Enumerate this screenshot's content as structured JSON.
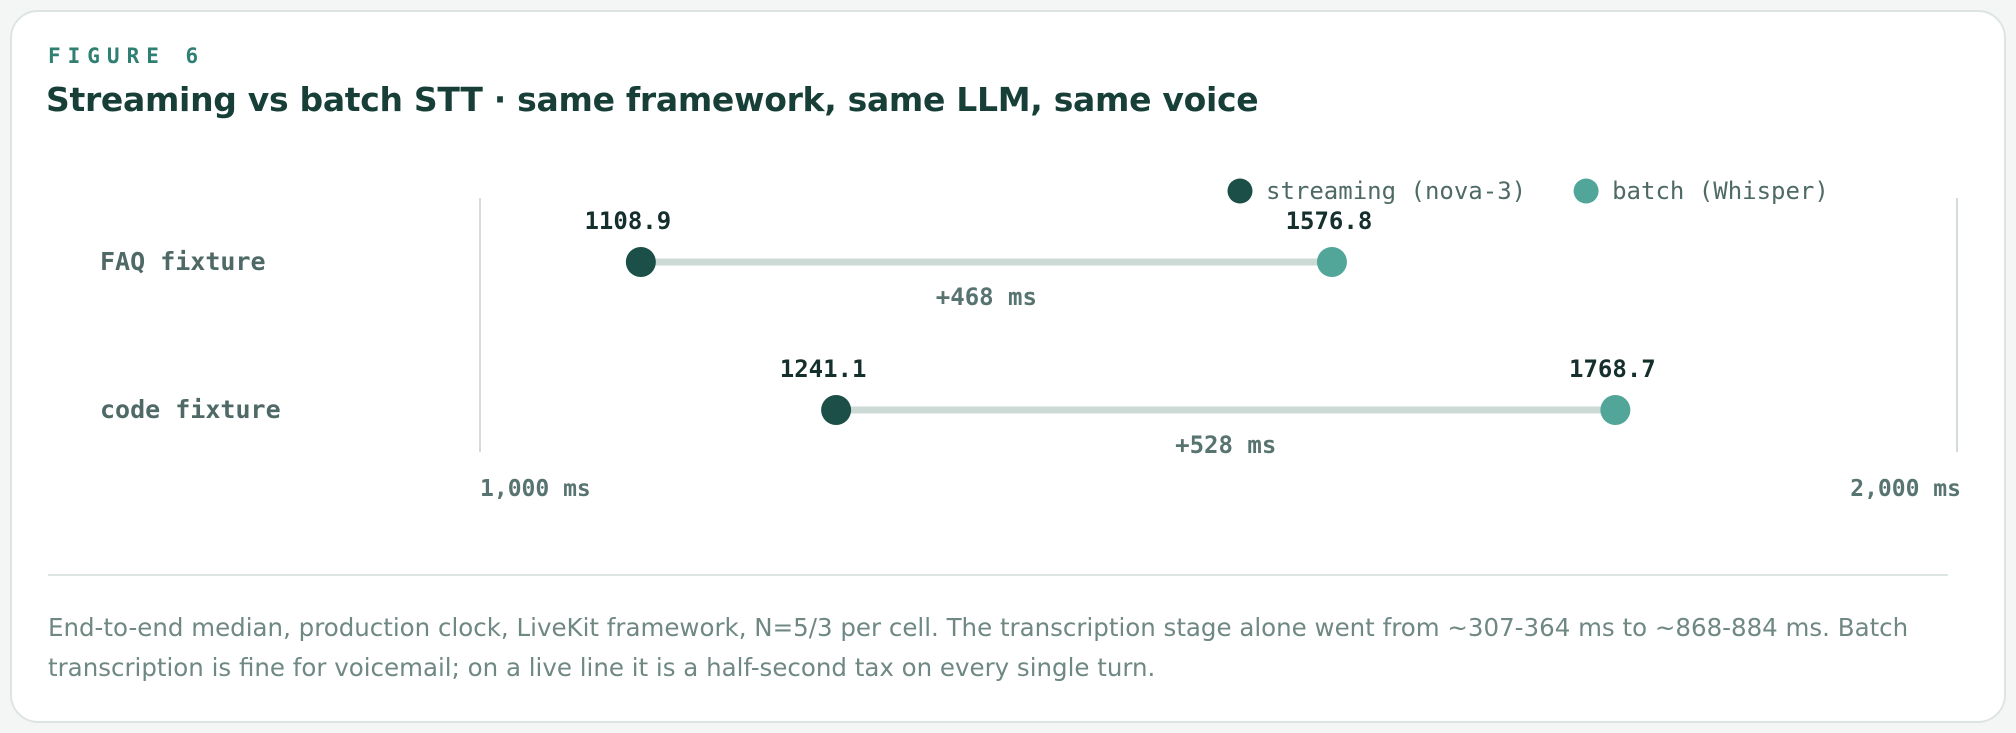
{
  "figure": {
    "eyebrow": "FIGURE 6",
    "title": "Streaming vs batch STT · same framework, same LLM, same voice",
    "caption": "End-to-end median, production clock, LiveKit framework, N=5/3 per cell. The transcription stage alone went from ~307-364 ms to ~868-884 ms. Batch transcription is fine for voicemail; on a live line it is a half-second tax on every single turn."
  },
  "colors": {
    "streaming": "#1b4f47",
    "batch": "#52a699",
    "connector": "#ccdad6",
    "axis": "#d3dcda",
    "row_label": "#4f6a66",
    "value_label": "#15302c",
    "delta_label": "#587470"
  },
  "chart_data": {
    "type": "dumbbell",
    "xlim": [
      1000,
      2000
    ],
    "x_ticks": [
      {
        "value": 1000,
        "label": "1,000 ms"
      },
      {
        "value": 2000,
        "label": "2,000 ms"
      }
    ],
    "legend_position": "top-right",
    "series": [
      {
        "key": "streaming",
        "name": "streaming (nova-3)"
      },
      {
        "key": "batch",
        "name": "batch (Whisper)"
      }
    ],
    "rows": [
      {
        "label": "FAQ fixture",
        "streaming": 1108.9,
        "streaming_label": "1108.9",
        "batch": 1576.8,
        "batch_label": "1576.8",
        "delta_label": "+468 ms"
      },
      {
        "label": "code fixture",
        "streaming": 1241.1,
        "streaming_label": "1241.1",
        "batch": 1768.7,
        "batch_label": "1768.7",
        "delta_label": "+528 ms"
      }
    ]
  }
}
